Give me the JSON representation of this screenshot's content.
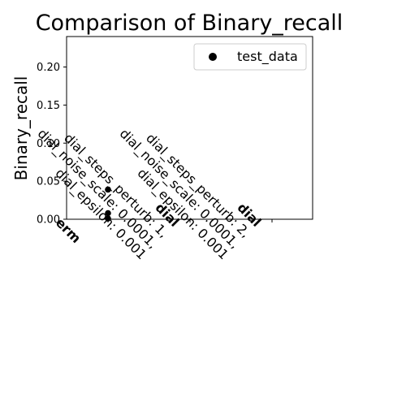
{
  "chart_data": {
    "type": "scatter",
    "title": "Comparison of Binary_recall",
    "xlabel": "",
    "ylabel": "Binary_recall",
    "ylim": [
      0,
      0.24
    ],
    "yticks": [
      0.0,
      0.05,
      0.1,
      0.15,
      0.2
    ],
    "ytick_labels": [
      "0.00",
      "0.05",
      "0.10",
      "0.15",
      "0.20"
    ],
    "categories": [
      {
        "lines": [
          "erm"
        ]
      },
      {
        "lines": [
          "dial",
          "dial_steps_perturb: 1,",
          "dial_noise_scale: 0.0001,",
          "dial_epsilon: 0.001"
        ]
      },
      {
        "lines": [
          "dial",
          "dial_steps_perturb: 2,",
          "dial_noise_scale: 0.0001,",
          "dial_epsilon: 0.001"
        ]
      }
    ],
    "series": [
      {
        "name": "test_data",
        "color": "#000000",
        "points": [
          {
            "category": 0,
            "y": 0.039
          },
          {
            "category": 0,
            "y": 0.008
          },
          {
            "category": 0,
            "y": 0.001
          }
        ]
      }
    ],
    "legend": {
      "position": "top-right"
    },
    "grid": false
  }
}
